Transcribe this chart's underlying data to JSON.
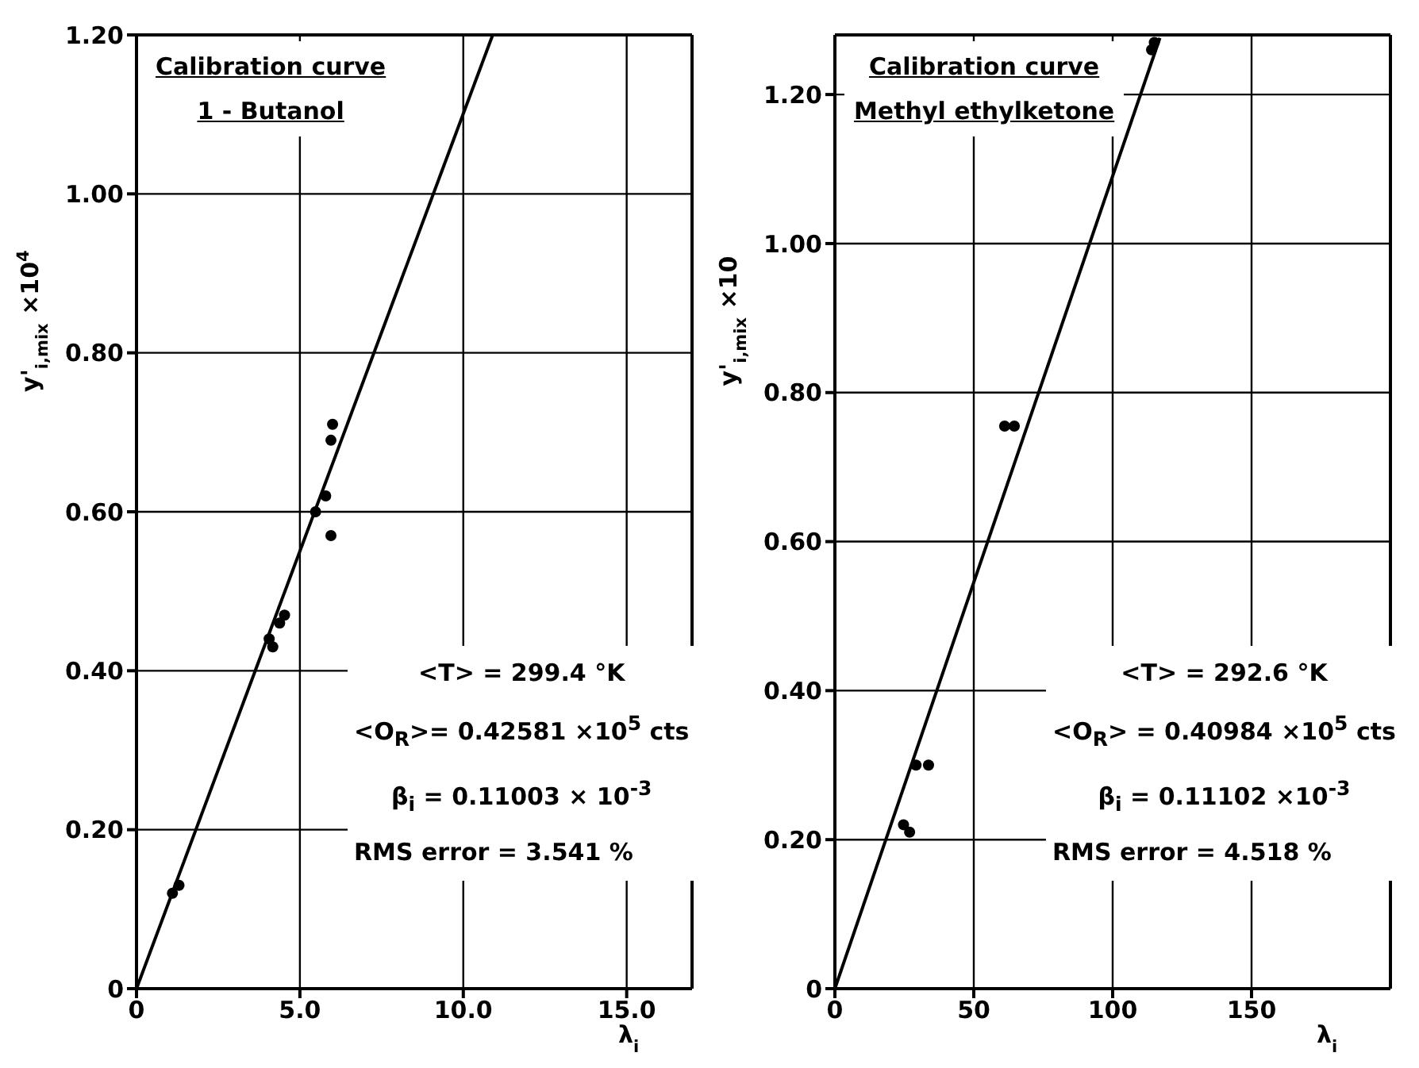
{
  "chart_data": [
    {
      "type": "scatter",
      "xlabel": "λ$_{i}$",
      "ylabel": "y'$_{i,mix}$ ×10$^{4}$",
      "xlim": [
        0,
        17
      ],
      "ylim": [
        0,
        1.2
      ],
      "xticks": [
        0,
        {
          "value": 5,
          "label": "5.0"
        },
        {
          "value": 10,
          "label": "10.0"
        },
        {
          "value": 15,
          "label": "15.0"
        }
      ],
      "yticks": [
        0,
        {
          "value": 0.2,
          "label": "0.20"
        },
        {
          "value": 0.4,
          "label": "0.40"
        },
        {
          "value": 0.6,
          "label": "0.60"
        },
        {
          "value": 0.8,
          "label": "0.80"
        },
        {
          "value": 1,
          "label": "1.00"
        },
        {
          "value": 1.2,
          "label": "1.20"
        }
      ],
      "grid": true,
      "marker": "circle",
      "annotations": [
        "Calibration curve",
        "1 - Butanol",
        "<T> = 299.4 °K",
        "<O$_{R}$>= 0.42581 ×10$^{5}$ cts",
        "β$_{i}$ = 0.11003 × 10$^{-3}$",
        "RMS error = 3.541 %"
      ],
      "series": [
        {
          "color": "#000000",
          "x": [
            1.1,
            1.3,
            4.06,
            4.17,
            4.38,
            4.53,
            5.48,
            5.79,
            5.95,
            5.95,
            6.0
          ],
          "values": [
            0.12,
            0.13,
            0.44,
            0.43,
            0.46,
            0.47,
            0.6,
            0.62,
            0.57,
            0.69,
            0.71
          ]
        },
        {
          "type": "line",
          "color": "#000000",
          "marker": "none",
          "x": [
            0,
            10.9
          ],
          "values": [
            0,
            1.2
          ]
        }
      ]
    },
    {
      "type": "scatter",
      "xlabel": "λ$_{i}$",
      "ylabel": "y'$_{i,mix}$ ×10",
      "xlim": [
        0,
        200
      ],
      "ylim": [
        0,
        1.28
      ],
      "xticks": [
        0,
        50,
        100,
        150
      ],
      "yticks": [
        0,
        {
          "value": 0.2,
          "label": "0.20"
        },
        {
          "value": 0.4,
          "label": "0.40"
        },
        {
          "value": 0.6,
          "label": "0.60"
        },
        {
          "value": 0.8,
          "label": "0.80"
        },
        {
          "value": 1,
          "label": "1.00"
        },
        {
          "value": 1.2,
          "label": "1.20"
        }
      ],
      "grid": true,
      "marker": "circle",
      "annotations": [
        "Calibration curve",
        "Methyl ethylketone",
        "<T> = 292.6 °K",
        "<O$_{R}$> = 0.40984 ×10$^{5}$ cts",
        "β$_{i}$ = 0.11102 ×10$^{-3}$",
        "RMS error = 4.518 %"
      ],
      "series": [
        {
          "color": "#000000",
          "x": [
            24.7,
            26.9,
            29.2,
            33.7,
            61.1,
            64.6,
            114,
            115
          ],
          "values": [
            0.22,
            0.21,
            0.3,
            0.3,
            0.755,
            0.755,
            1.26,
            1.27
          ]
        },
        {
          "type": "line",
          "color": "#000000",
          "marker": "none",
          "x": [
            0,
            117
          ],
          "values": [
            0,
            1.276
          ]
        }
      ]
    }
  ]
}
